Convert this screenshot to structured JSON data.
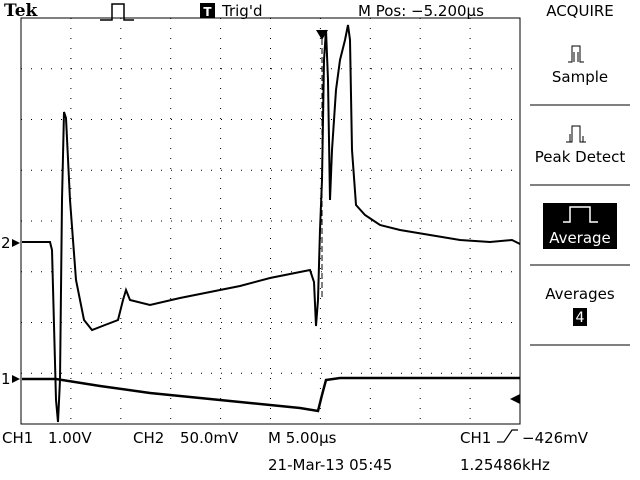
{
  "header": {
    "brand": "Tek",
    "trigger_icon": "T",
    "trigger_status": "Trig'd",
    "position": "M Pos: −5.200µs",
    "menu_title": "ACQUIRE"
  },
  "menu": {
    "items": [
      "Sample",
      "Peak Detect",
      "Average",
      "Averages"
    ],
    "averages_value": "4"
  },
  "markers": {
    "ch2": "2",
    "ch1": "1"
  },
  "footer": {
    "ch1_label": "CH1",
    "ch1_scale": "1.00V",
    "ch2_label": "CH2",
    "ch2_scale": "50.0mV",
    "timebase": "M 5.00µs",
    "trigger_source": "CH1",
    "trigger_level": "−426mV",
    "date_time": "21-Mar-13 05:45",
    "frequency": "1.25486kHz"
  }
}
